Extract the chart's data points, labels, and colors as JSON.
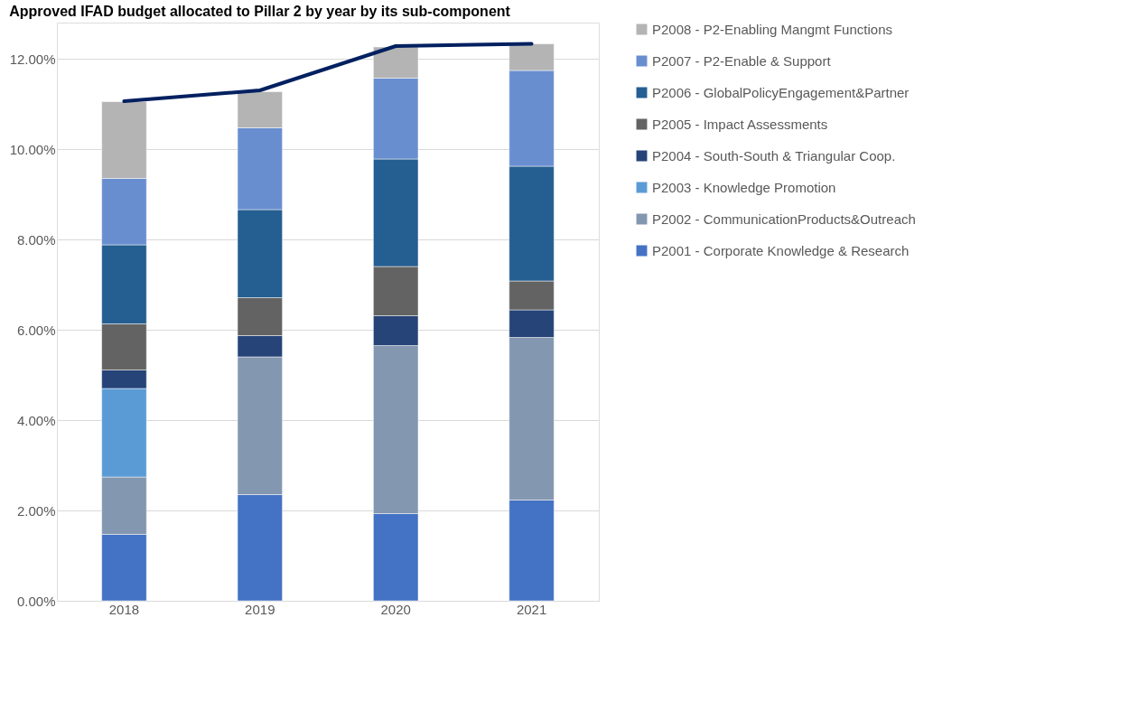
{
  "chart_data": {
    "type": "bar",
    "stacked": true,
    "title": "Approved IFAD budget allocated to Pillar 2 by year by its sub-component",
    "categories": [
      "2018",
      "2019",
      "2020",
      "2021"
    ],
    "series": [
      {
        "name": "P2001 - Corporate Knowledge & Research",
        "color": "#4472c4",
        "values": [
          1.47,
          2.35,
          1.93,
          2.23
        ]
      },
      {
        "name": "P2002 - CommunicationProducts&Outreach",
        "color": "#8497b0",
        "values": [
          1.27,
          3.05,
          3.72,
          3.6
        ]
      },
      {
        "name": "P2003 - Knowledge Promotion",
        "color": "#5b9bd5",
        "values": [
          1.96,
          null,
          null,
          null
        ]
      },
      {
        "name": "P2004 - South-South & Triangular Coop.",
        "color": "#264478",
        "values": [
          0.41,
          0.47,
          0.66,
          0.61
        ]
      },
      {
        "name": "P2005 - Impact Assessments",
        "color": "#636363",
        "values": [
          1.02,
          0.84,
          1.09,
          0.64
        ]
      },
      {
        "name": "P2006 - GlobalPolicyEngagement&Partner",
        "color": "#255e91",
        "values": [
          1.75,
          1.95,
          2.38,
          2.54
        ]
      },
      {
        "name": "P2007 - P2-Enable & Support",
        "color": "#698ed0",
        "values": [
          1.47,
          1.81,
          1.79,
          2.12
        ]
      },
      {
        "name": "P2008 - P2-Enabling Mangmt Functions",
        "color": "#b4b4b4",
        "values": [
          1.7,
          0.8,
          0.69,
          0.59
        ]
      },
      {
        "type": "line",
        "color": "#002060",
        "values": [
          11.06,
          11.3,
          12.28,
          12.33
        ]
      }
    ],
    "ylim": [
      0,
      12.8
    ],
    "yticks": [
      {
        "value": 0,
        "label": "0.00%"
      },
      {
        "value": 2,
        "label": "2.00%"
      },
      {
        "value": 4,
        "label": "4.00%"
      },
      {
        "value": 6,
        "label": "6.00%"
      },
      {
        "value": 8,
        "label": "8.00%"
      },
      {
        "value": 10,
        "label": "10.00%"
      },
      {
        "value": 12,
        "label": "12.00%"
      }
    ],
    "grid": "y",
    "legend": "right",
    "marker": "none",
    "line_style": "solid"
  }
}
